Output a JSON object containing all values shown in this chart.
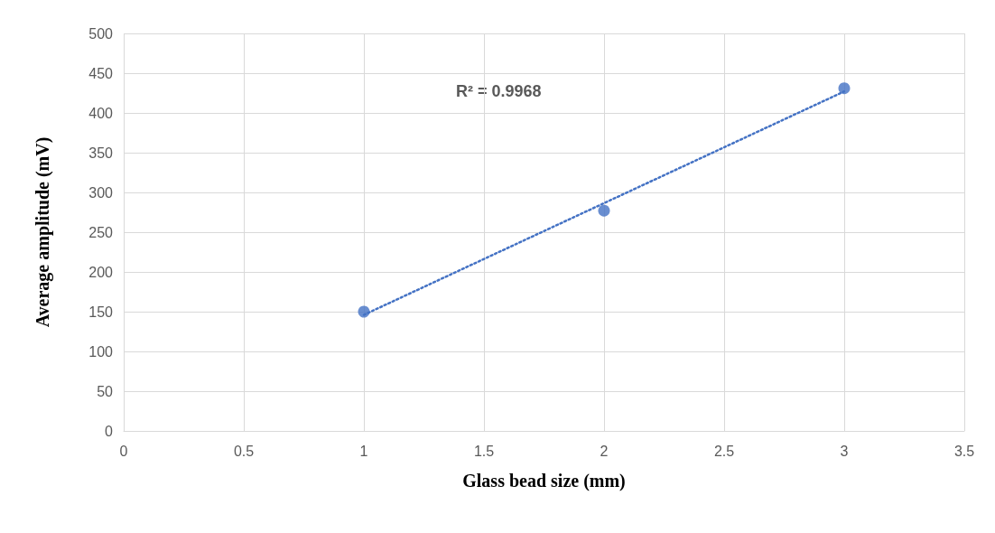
{
  "chart_data": {
    "type": "scatter",
    "xlabel": "Glass bead size (mm)",
    "ylabel": "Average amplitude (mV)",
    "xlim": [
      0,
      3.5
    ],
    "xticks": [
      0,
      0.5,
      1,
      1.5,
      2,
      2.5,
      3,
      3.5
    ],
    "ylim": [
      0,
      500
    ],
    "yticks": [
      0,
      50,
      100,
      150,
      200,
      250,
      300,
      350,
      400,
      450,
      500
    ],
    "grid": true,
    "marker": "circle",
    "series": [
      {
        "color": "#4472c4",
        "x": [
          1,
          2,
          3
        ],
        "values": [
          150,
          277,
          431
        ]
      },
      {
        "type": "line",
        "color": "#4472c4",
        "x": [
          1,
          3
        ],
        "values": [
          146,
          427
        ],
        "marker": "none",
        "line_style": "dotted"
      }
    ],
    "annotations": [
      "R² = 0.9968"
    ]
  }
}
